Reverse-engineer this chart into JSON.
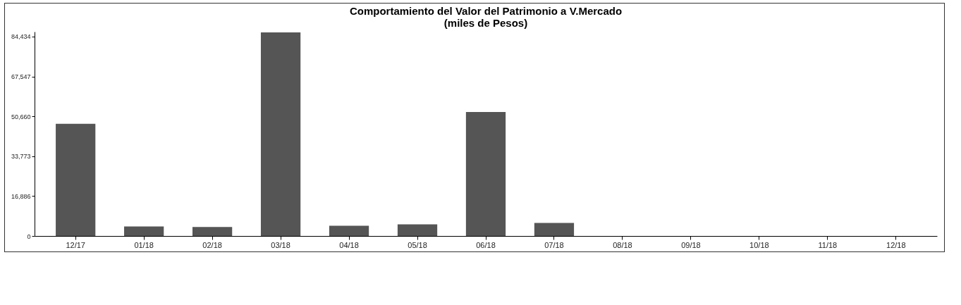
{
  "chart_data": {
    "type": "bar",
    "title": "Comportamiento del Valor del Patrimonio a V.Mercado",
    "subtitle": "(miles de Pesos)",
    "categories": [
      "12/17",
      "01/18",
      "02/18",
      "03/18",
      "04/18",
      "05/18",
      "06/18",
      "07/18",
      "08/18",
      "09/18",
      "10/18",
      "11/18",
      "12/18"
    ],
    "values": [
      47500,
      4000,
      3800,
      86200,
      4300,
      4900,
      52500,
      5500,
      0,
      0,
      0,
      0,
      0
    ],
    "color": "#555555",
    "ylim": [
      0,
      86500
    ],
    "yticks": [
      0,
      {
        "value": 16886,
        "label": "16,886"
      },
      {
        "value": 33773,
        "label": "33,773"
      },
      {
        "value": 50660,
        "label": "50,660"
      },
      {
        "value": 67547,
        "label": "67,547"
      },
      {
        "value": 84434,
        "label": "84,434"
      }
    ],
    "grid": false
  }
}
